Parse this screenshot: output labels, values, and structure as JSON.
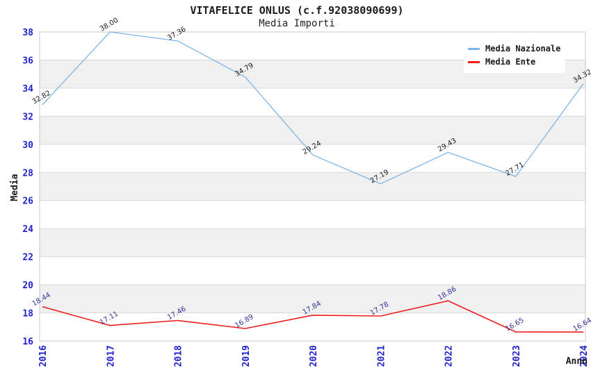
{
  "header": {
    "title": "VITAFELICE ONLUS (c.f.92038090699)",
    "subtitle": "Media Importi"
  },
  "chart_data": {
    "type": "line",
    "title": "VITAFELICE ONLUS (c.f.92038090699)",
    "subtitle": "Media Importi",
    "xlabel": "Anno",
    "ylabel": "Media",
    "categories": [
      "2016",
      "2017",
      "2018",
      "2019",
      "2020",
      "2021",
      "2022",
      "2023",
      "2024"
    ],
    "series": [
      {
        "name": "Media Nazionale",
        "color": "#7cb5ec",
        "label_color": "#1a1a1a",
        "values": [
          32.82,
          38.0,
          37.36,
          34.79,
          29.24,
          27.19,
          29.43,
          27.71,
          34.32
        ],
        "labels": [
          "32.82",
          "38.00",
          "37.36",
          "34.79",
          "29.24",
          "27.19",
          "29.43",
          "27.71",
          "34.32"
        ]
      },
      {
        "name": "Media Ente",
        "color": "#ee1c1c",
        "label_color": "#333399",
        "values": [
          18.44,
          17.11,
          17.46,
          16.89,
          17.84,
          17.78,
          18.86,
          16.65,
          16.64
        ],
        "labels": [
          "18.44",
          "17.11",
          "17.46",
          "16.89",
          "17.84",
          "17.78",
          "18.86",
          "16.65",
          "16.64"
        ]
      }
    ],
    "ylim": [
      16,
      38
    ],
    "ytick_step": 2,
    "grid": "horizontal",
    "alternating_bands": true,
    "band_color": "#f0f0f0",
    "gridline_color": "#d9d9d9",
    "plot_border_color": "#c8c8c8",
    "tick_label_color": "#2222cc",
    "legend_position": "top-right"
  }
}
